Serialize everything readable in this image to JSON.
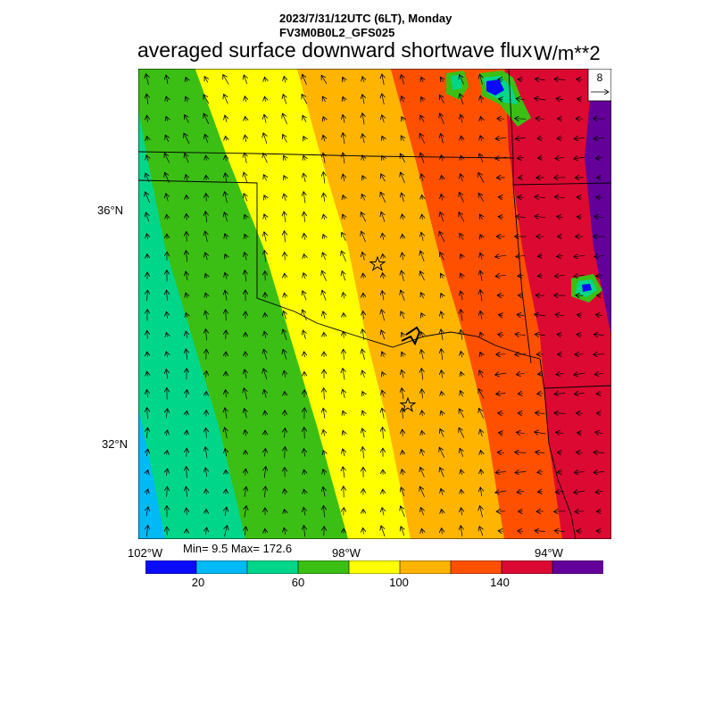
{
  "header": {
    "datetime": "2023/7/31/12UTC (6LT), Monday",
    "model": "FV3M0B0L2_GFS025",
    "title": "averaged surface downward shortwave flux",
    "units": "W/m**2"
  },
  "map": {
    "lat_labels": [
      "36°N",
      "32°N"
    ],
    "lon_labels": [
      "102°W",
      "98°W",
      "94°W"
    ],
    "markers": [
      "star",
      "star"
    ],
    "vector_ref": {
      "value": "8"
    }
  },
  "stats": {
    "text": "Min= 9.5 Max= 172.6"
  },
  "colorbar": {
    "colors": [
      "#0a0aff",
      "#00b9f5",
      "#00d68a",
      "#3cbf14",
      "#ffff00",
      "#ffb400",
      "#ff5000",
      "#dc0a32",
      "#64009a"
    ],
    "tick_labels": [
      "20",
      "60",
      "100",
      "140"
    ]
  },
  "colors": {
    "blue": "#0a0aff",
    "cyan": "#00b9f5",
    "teal": "#00d68a",
    "green": "#3cbf14",
    "yellow": "#ffff00",
    "orange": "#ffb400",
    "red_orange": "#ff5000",
    "red": "#dc0a32",
    "purple": "#64009a"
  }
}
